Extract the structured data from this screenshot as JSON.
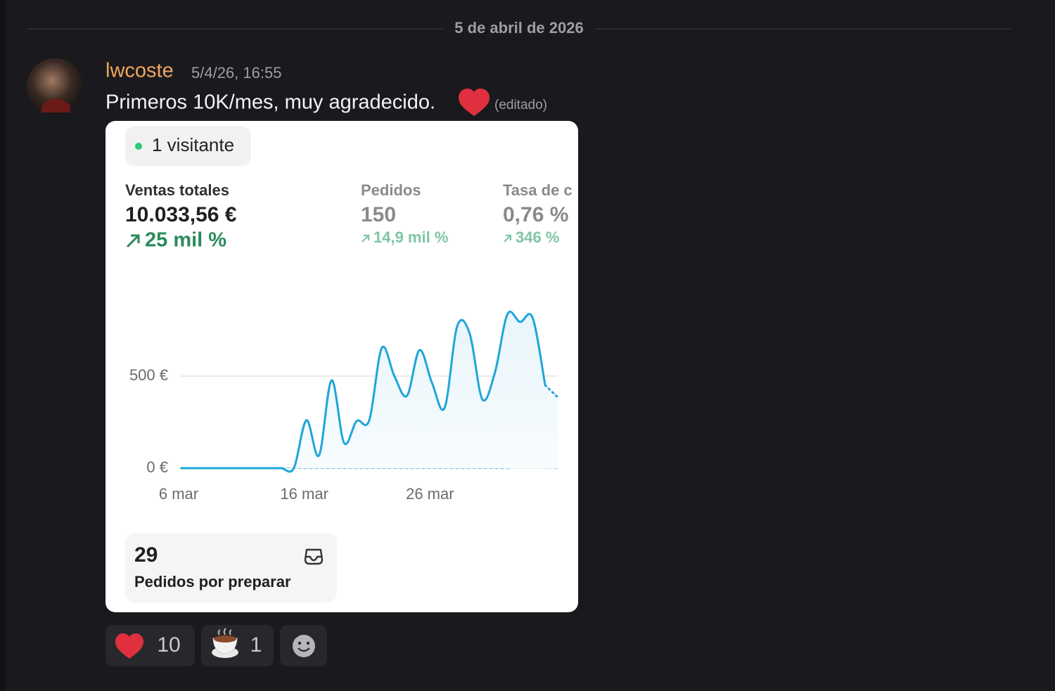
{
  "date_divider": "5 de abril de 2026",
  "message": {
    "author": "lwcoste",
    "timestamp": "5/4/26, 16:55",
    "text": "Primeros 10K/mes,  muy agradecido.",
    "edited": "(editado)"
  },
  "embed": {
    "visitors": "1 visitante",
    "metrics": [
      {
        "label": "Ventas totales",
        "value": "10.033,56 €",
        "change": "25 mil %"
      },
      {
        "label": "Pedidos",
        "value": "150",
        "change": "14,9 mil %"
      },
      {
        "label": "Tasa de c",
        "value": "0,76 %",
        "change": "346 %"
      }
    ],
    "card": {
      "count": 29,
      "label": "Pedidos por preparar"
    }
  },
  "chart_data": {
    "type": "line",
    "categories": [
      "6 mar",
      null,
      null,
      null,
      null,
      null,
      null,
      null,
      null,
      null,
      "16 mar",
      null,
      null,
      null,
      null,
      null,
      null,
      null,
      null,
      null,
      "26 mar",
      null,
      null,
      null,
      null,
      null,
      null,
      null,
      null,
      null,
      null
    ],
    "series": [
      {
        "color": "#1ea6d9",
        "values": [
          0,
          0,
          0,
          0,
          0,
          0,
          0,
          0,
          0,
          0,
          260,
          69,
          477,
          137,
          256,
          260,
          653,
          500,
          393,
          641,
          462,
          328,
          771,
          729,
          374,
          519,
          836,
          794,
          817,
          450,
          385
        ]
      },
      {
        "color": "#7cc6e3",
        "values": [
          0,
          0,
          0,
          0,
          0,
          0,
          0,
          0,
          0,
          0,
          0,
          0,
          0,
          0,
          0,
          0,
          0,
          0,
          0,
          0,
          0,
          0,
          0,
          0,
          0,
          0,
          0,
          15,
          38,
          10,
          0
        ]
      }
    ],
    "ylim": [
      0,
      900
    ],
    "yticks": [
      {
        "value": 0,
        "label": "0 €"
      },
      {
        "value": 500,
        "label": "500 €"
      }
    ],
    "grid": true
  },
  "reactions": [
    {
      "count": 10
    },
    {
      "count": 1
    }
  ]
}
